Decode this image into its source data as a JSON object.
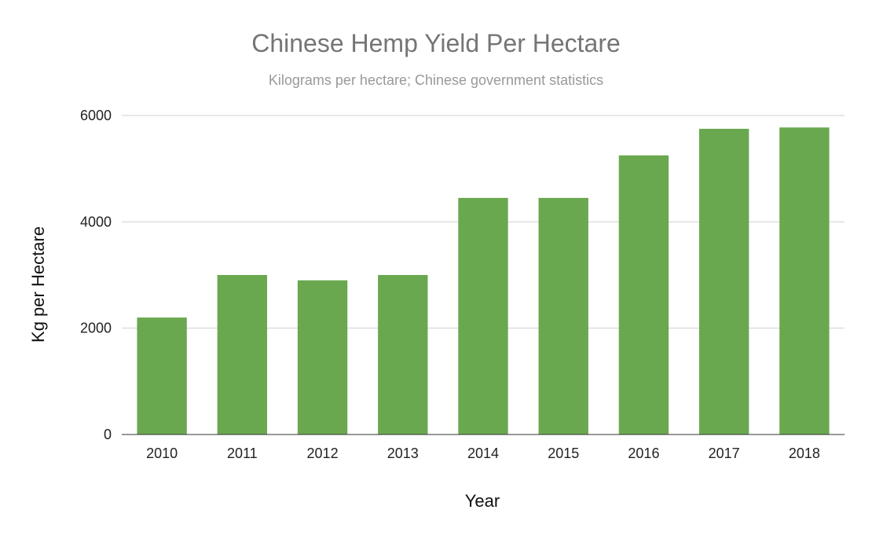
{
  "chart_data": {
    "type": "bar",
    "title": "Chinese Hemp Yield Per Hectare",
    "subtitle": "Kilograms per hectare; Chinese government statistics",
    "xlabel": "Year",
    "ylabel": "Kg per Hectare",
    "categories": [
      "2010",
      "2011",
      "2012",
      "2013",
      "2014",
      "2015",
      "2016",
      "2017",
      "2018"
    ],
    "values": [
      2200,
      3000,
      2900,
      3000,
      4450,
      4450,
      5250,
      5750,
      5775
    ],
    "ylim": [
      0,
      6000
    ],
    "yticks": [
      "0",
      "2000",
      "4000",
      "6000"
    ],
    "grid": true,
    "legend": "none",
    "colors": {
      "bar": "#6aa84f",
      "grid": "#d0d0d0",
      "axis": "#333333"
    }
  }
}
